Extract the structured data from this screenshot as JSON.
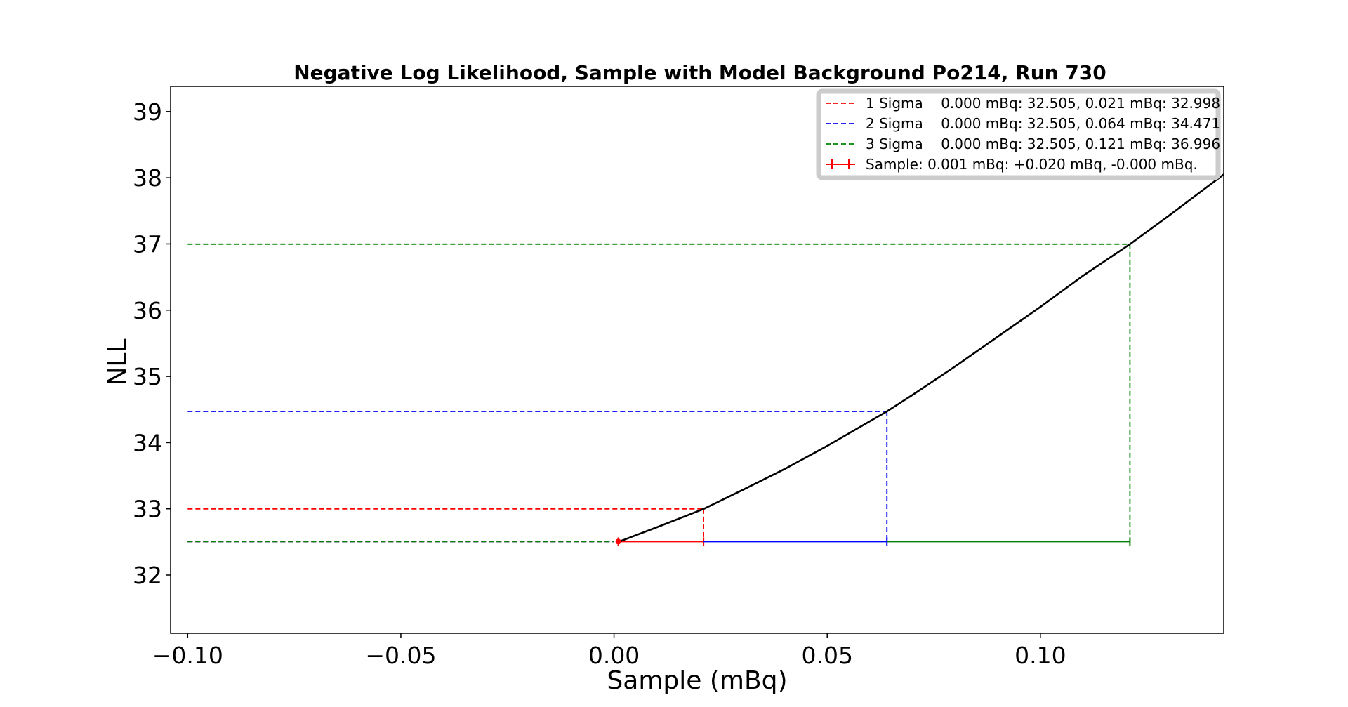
{
  "chart_data": {
    "type": "line",
    "title": "Negative Log Likelihood, Sample with Model Background Po214, Run 730",
    "xlabel": "Sample (mBq)",
    "ylabel": "NLL",
    "xlim": [
      -0.104,
      0.143
    ],
    "ylim": [
      31.12,
      39.38
    ],
    "x_ticks": [
      {
        "value": -0.1,
        "label": "−0.10"
      },
      {
        "value": -0.05,
        "label": "−0.05"
      },
      {
        "value": 0.0,
        "label": "0.00"
      },
      {
        "value": 0.05,
        "label": "0.05"
      },
      {
        "value": 0.1,
        "label": "0.10"
      }
    ],
    "y_ticks": [
      {
        "value": 32,
        "label": "32"
      },
      {
        "value": 33,
        "label": "33"
      },
      {
        "value": 34,
        "label": "34"
      },
      {
        "value": 35,
        "label": "35"
      },
      {
        "value": 36,
        "label": "36"
      },
      {
        "value": 37,
        "label": "37"
      },
      {
        "value": 38,
        "label": "38"
      },
      {
        "value": 39,
        "label": "39"
      }
    ],
    "grid": false,
    "legend_position": "top-right",
    "curve": {
      "color": "#000000",
      "x": [
        0.001,
        0.01,
        0.021,
        0.03,
        0.04,
        0.05,
        0.064,
        0.07,
        0.08,
        0.09,
        0.1,
        0.11,
        0.121,
        0.13,
        0.143
      ],
      "y": [
        32.5,
        32.72,
        32.998,
        33.28,
        33.6,
        33.95,
        34.471,
        34.72,
        35.15,
        35.6,
        36.05,
        36.52,
        36.996,
        37.42,
        38.05
      ]
    },
    "sigma_lines": [
      {
        "label": "1 Sigma    0.000 mBq: 32.505, 0.021 mBq: 32.998",
        "color": "#ff0000",
        "x_low": 0.0,
        "y_low": 32.505,
        "x_high": 0.021,
        "y_high": 32.998
      },
      {
        "label": "2 Sigma    0.000 mBq: 32.505, 0.064 mBq: 34.471",
        "color": "#0000ff",
        "x_low": 0.0,
        "y_low": 32.505,
        "x_high": 0.064,
        "y_high": 34.471
      },
      {
        "label": "3 Sigma    0.000 mBq: 32.505, 0.121 mBq: 36.996",
        "color": "#008000",
        "x_low": 0.0,
        "y_low": 32.505,
        "x_high": 0.121,
        "y_high": 36.996
      }
    ],
    "sample": {
      "label": "Sample: 0.001 mBq: +0.020 mBq, -0.000 mBq.",
      "color": "#ff0000",
      "x": 0.001,
      "y": 32.505,
      "err_plus": 0.02,
      "err_minus": 0.0
    },
    "error_segments": [
      {
        "from": 0.001,
        "to": 0.021,
        "color": "#ff0000"
      },
      {
        "from": 0.021,
        "to": 0.064,
        "color": "#0000ff"
      },
      {
        "from": 0.064,
        "to": 0.121,
        "color": "#008000"
      }
    ]
  }
}
